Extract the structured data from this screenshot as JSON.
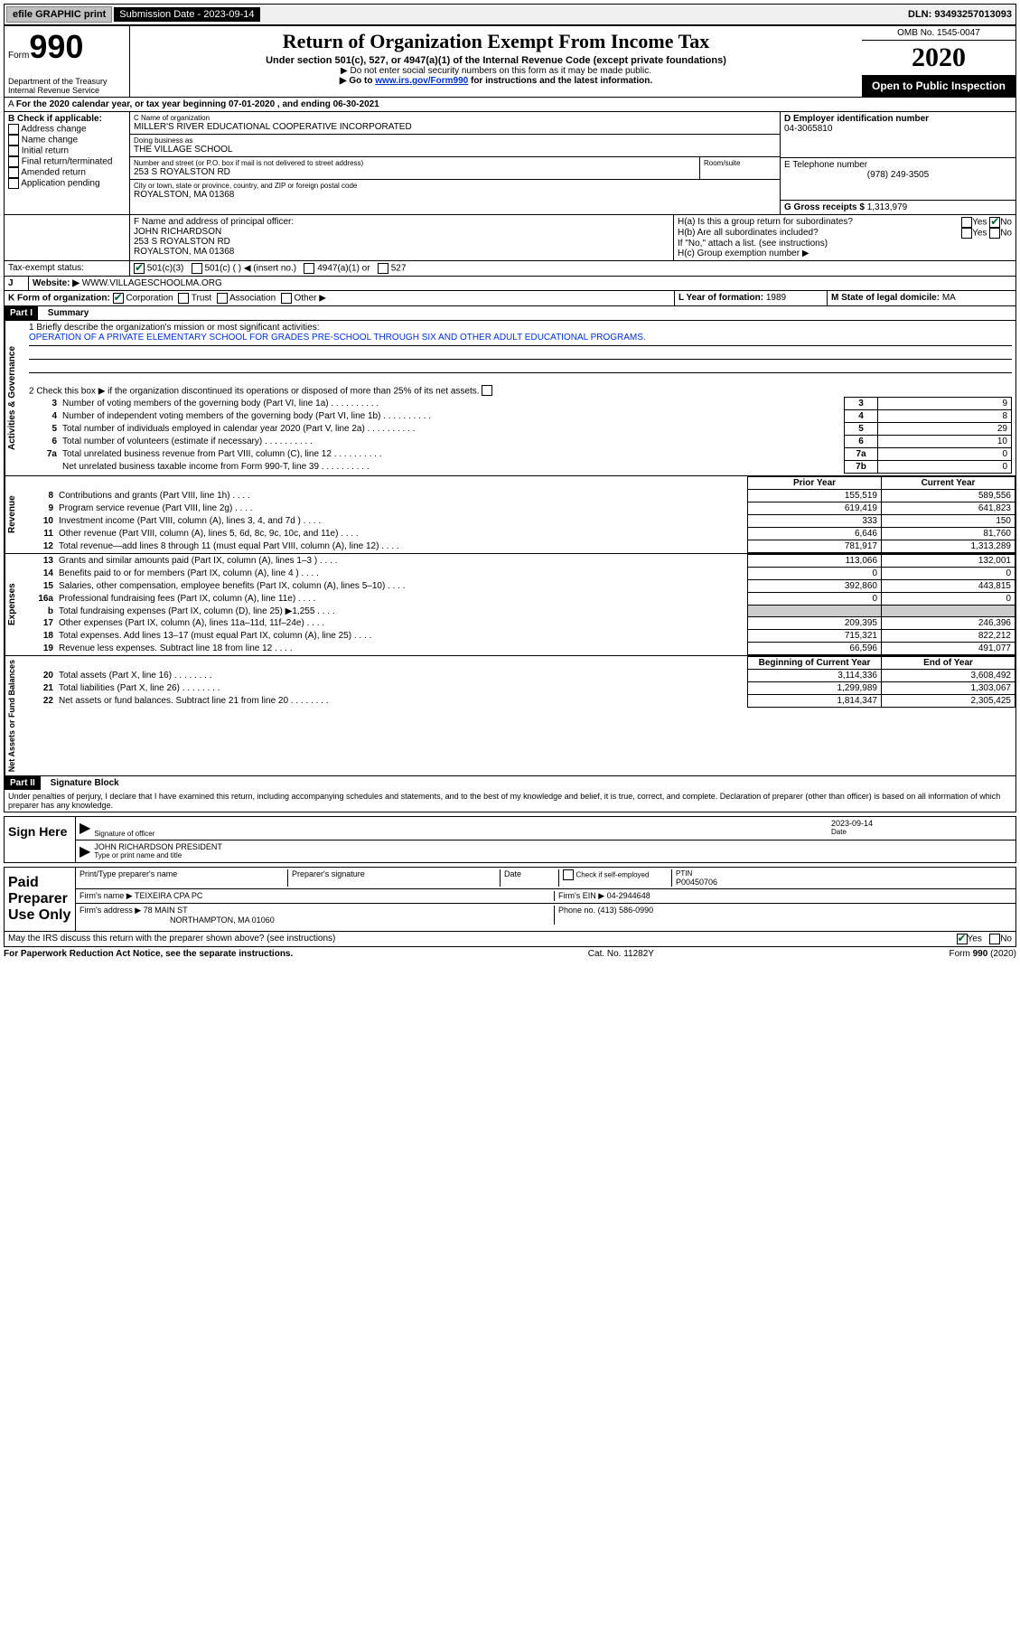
{
  "topbar": {
    "efile": "efile GRAPHIC print",
    "subdate_label": "Submission Date - ",
    "subdate": "2023-09-14",
    "dln_label": "DLN: ",
    "dln": "93493257013093"
  },
  "header": {
    "form_label": "Form",
    "form_no": "990",
    "dept": "Department of the Treasury\nInternal Revenue Service",
    "title": "Return of Organization Exempt From Income Tax",
    "subtitle": "Under section 501(c), 527, or 4947(a)(1) of the Internal Revenue Code (except private foundations)",
    "note1": "▶ Do not enter social security numbers on this form as it may be made public.",
    "note2_pre": "▶ Go to ",
    "note2_link": "www.irs.gov/Form990",
    "note2_post": " for instructions and the latest information.",
    "omb": "OMB No. 1545-0047",
    "year": "2020",
    "open": "Open to Public Inspection"
  },
  "periodA": "For the 2020 calendar year, or tax year beginning 07-01-2020     , and ending 06-30-2021",
  "boxB": {
    "label": "B Check if applicable:",
    "items": [
      "Address change",
      "Name change",
      "Initial return",
      "Final return/terminated",
      "Amended return",
      "Application pending"
    ]
  },
  "boxC": {
    "name_label": "C Name of organization",
    "name": "MILLER'S RIVER EDUCATIONAL COOPERATIVE INCORPORATED",
    "dba_label": "Doing business as",
    "dba": "THE VILLAGE SCHOOL",
    "street_label": "Number and street (or P.O. box if mail is not delivered to street address)",
    "street": "253 S ROYALSTON RD",
    "room_label": "Room/suite",
    "room": "",
    "city_label": "City or town, state or province, country, and ZIP or foreign postal code",
    "city": "ROYALSTON, MA  01368"
  },
  "boxD": {
    "label": "D Employer identification number",
    "value": "04-3065810"
  },
  "boxE": {
    "label": "E Telephone number",
    "value": "(978) 249-3505"
  },
  "boxG": {
    "label": "G Gross receipts $",
    "value": "1,313,979"
  },
  "boxF": {
    "label": "F  Name and address of principal officer:",
    "name": "JOHN RICHARDSON",
    "addr1": "253 S ROYALSTON RD",
    "addr2": "ROYALSTON, MA  01368"
  },
  "boxH": {
    "a": "H(a)  Is this a group return for subordinates?",
    "b": "H(b)  Are all subordinates included?",
    "b_note": "If \"No,\" attach a list. (see instructions)",
    "c": "H(c)  Group exemption number ▶"
  },
  "taxexempt": {
    "label": "Tax-exempt status:",
    "opts": [
      "501(c)(3)",
      "501(c) (    ) ◀ (insert no.)",
      "4947(a)(1) or",
      "527"
    ]
  },
  "boxJ": {
    "label": "J",
    "label2": "Website: ▶",
    "value": "WWW.VILLAGESCHOOLMA.ORG"
  },
  "boxK": {
    "label": "K Form of organization:",
    "opts": [
      "Corporation",
      "Trust",
      "Association",
      "Other ▶"
    ]
  },
  "boxL": {
    "label": "L Year of formation:",
    "value": "1989"
  },
  "boxM": {
    "label": "M State of legal domicile:",
    "value": "MA"
  },
  "part1": {
    "header": "Part I",
    "title": "Summary",
    "q1": "1  Briefly describe the organization's mission or most significant activities:",
    "mission": "OPERATION OF A PRIVATE ELEMENTARY SCHOOL FOR GRADES PRE-SCHOOL THROUGH SIX AND OTHER ADULT EDUCATIONAL PROGRAMS.",
    "q2": "2    Check this box ▶       if the organization discontinued its operations or disposed of more than 25% of its net assets.",
    "rows": [
      {
        "n": "3",
        "t": "Number of voting members of the governing body (Part VI, line 1a)",
        "box": "3",
        "v": "9"
      },
      {
        "n": "4",
        "t": "Number of independent voting members of the governing body (Part VI, line 1b)",
        "box": "4",
        "v": "8"
      },
      {
        "n": "5",
        "t": "Total number of individuals employed in calendar year 2020 (Part V, line 2a)",
        "box": "5",
        "v": "29"
      },
      {
        "n": "6",
        "t": "Total number of volunteers (estimate if necessary)",
        "box": "6",
        "v": "10"
      },
      {
        "n": "7a",
        "t": "Total unrelated business revenue from Part VIII, column (C), line 12",
        "box": "7a",
        "v": "0"
      },
      {
        "n": "",
        "t": "Net unrelated business taxable income from Form 990-T, line 39",
        "box": "7b",
        "v": "0"
      }
    ],
    "col_prior": "Prior Year",
    "col_current": "Current Year",
    "revenue": [
      {
        "n": "8",
        "t": "Contributions and grants (Part VIII, line 1h)",
        "p": "155,519",
        "c": "589,556"
      },
      {
        "n": "9",
        "t": "Program service revenue (Part VIII, line 2g)",
        "p": "619,419",
        "c": "641,823"
      },
      {
        "n": "10",
        "t": "Investment income (Part VIII, column (A), lines 3, 4, and 7d )",
        "p": "333",
        "c": "150"
      },
      {
        "n": "11",
        "t": "Other revenue (Part VIII, column (A), lines 5, 6d, 8c, 9c, 10c, and 11e)",
        "p": "6,646",
        "c": "81,760"
      },
      {
        "n": "12",
        "t": "Total revenue—add lines 8 through 11 (must equal Part VIII, column (A), line 12)",
        "p": "781,917",
        "c": "1,313,289"
      }
    ],
    "expenses": [
      {
        "n": "13",
        "t": "Grants and similar amounts paid (Part IX, column (A), lines 1–3 )",
        "p": "113,066",
        "c": "132,001"
      },
      {
        "n": "14",
        "t": "Benefits paid to or for members (Part IX, column (A), line 4 )",
        "p": "0",
        "c": "0"
      },
      {
        "n": "15",
        "t": "Salaries, other compensation, employee benefits (Part IX, column (A), lines 5–10)",
        "p": "392,860",
        "c": "443,815"
      },
      {
        "n": "16a",
        "t": "Professional fundraising fees (Part IX, column (A), line 11e)",
        "p": "0",
        "c": "0"
      },
      {
        "n": "b",
        "t": "Total fundraising expenses (Part IX, column (D), line 25) ▶1,255",
        "p": "",
        "c": "",
        "grey": true
      },
      {
        "n": "17",
        "t": "Other expenses (Part IX, column (A), lines 11a–11d, 11f–24e)",
        "p": "209,395",
        "c": "246,396"
      },
      {
        "n": "18",
        "t": "Total expenses. Add lines 13–17 (must equal Part IX, column (A), line 25)",
        "p": "715,321",
        "c": "822,212"
      },
      {
        "n": "19",
        "t": "Revenue less expenses. Subtract line 18 from line 12",
        "p": "66,596",
        "c": "491,077"
      }
    ],
    "col_begin": "Beginning of Current Year",
    "col_end": "End of Year",
    "netassets": [
      {
        "n": "20",
        "t": "Total assets (Part X, line 16)",
        "p": "3,114,336",
        "c": "3,608,492"
      },
      {
        "n": "21",
        "t": "Total liabilities (Part X, line 26)",
        "p": "1,299,989",
        "c": "1,303,067"
      },
      {
        "n": "22",
        "t": "Net assets or fund balances. Subtract line 21 from line 20",
        "p": "1,814,347",
        "c": "2,305,425"
      }
    ]
  },
  "part2": {
    "header": "Part II",
    "title": "Signature Block",
    "decl": "Under penalties of perjury, I declare that I have examined this return, including accompanying schedules and statements, and to the best of my knowledge and belief, it is true, correct, and complete. Declaration of preparer (other than officer) is based on all information of which preparer has any knowledge.",
    "sign_here": "Sign Here",
    "sig_officer": "Signature of officer",
    "sig_date": "2023-09-14",
    "date_label": "Date",
    "officer_name": "JOHN RICHARDSON  PRESIDENT",
    "officer_label": "Type or print name and title",
    "paid": "Paid Preparer Use Only",
    "prep_name_label": "Print/Type preparer's name",
    "prep_sig_label": "Preparer's signature",
    "prep_date_label": "Date",
    "check_self": "Check        if self-employed",
    "ptin_label": "PTIN",
    "ptin": "P00450706",
    "firm_name_label": "Firm's name     ▶",
    "firm_name": "TEIXEIRA CPA PC",
    "firm_ein_label": "Firm's EIN ▶",
    "firm_ein": "04-2944648",
    "firm_addr_label": "Firm's address ▶",
    "firm_addr": "78 MAIN ST",
    "firm_city": "NORTHAMPTON, MA  01060",
    "phone_label": "Phone no.",
    "phone": "(413) 586-0990",
    "may_irs": "May the IRS discuss this return with the preparer shown above? (see instructions)"
  },
  "footer": {
    "left": "For Paperwork Reduction Act Notice, see the separate instructions.",
    "mid": "Cat. No. 11282Y",
    "right": "Form 990 (2020)"
  },
  "side_labels": {
    "gov": "Activities & Governance",
    "rev": "Revenue",
    "exp": "Expenses",
    "net": "Net Assets or Fund Balances"
  }
}
